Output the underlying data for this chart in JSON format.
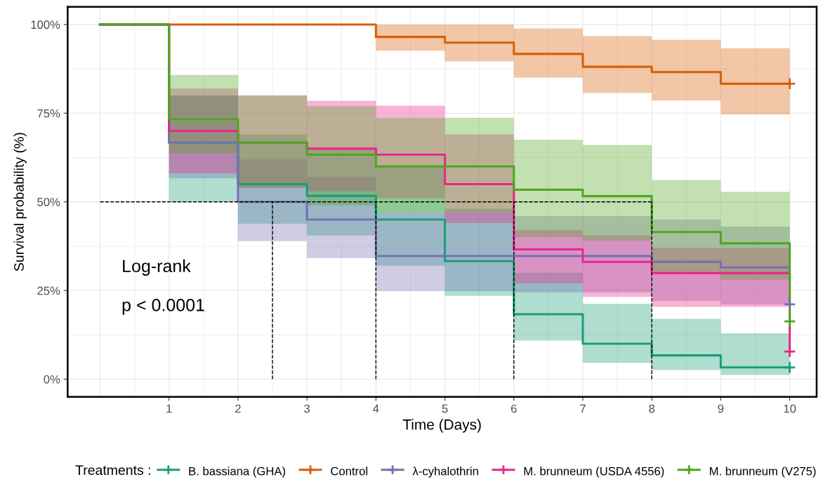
{
  "chart_data": {
    "type": "step",
    "xlabel": "Time (Days)",
    "ylabel": "Survival probability (%)",
    "legend_title": "Treatments :",
    "x": [
      0,
      1,
      2,
      3,
      4,
      5,
      6,
      7,
      8,
      9,
      10
    ],
    "xlim": [
      -0.47,
      10.39
    ],
    "xticks": [
      1,
      2,
      3,
      4,
      5,
      6,
      7,
      8,
      9,
      10
    ],
    "ylim": [
      -5,
      105
    ],
    "yticks": [
      {
        "value": 0,
        "label": "0%"
      },
      {
        "value": 25,
        "label": "25%"
      },
      {
        "value": 50,
        "label": "50%"
      },
      {
        "value": 75,
        "label": "75%"
      },
      {
        "value": 100,
        "label": "100%"
      }
    ],
    "grid": true,
    "legend": "bottom",
    "line_style": "solid",
    "series": [
      {
        "name": "B. bassiana (GHA)",
        "color": "#1b9e77",
        "values": [
          100,
          66.7,
          55,
          51.7,
          45,
          33.3,
          18.3,
          10,
          6.7,
          3.3,
          3.3
        ],
        "lower": [
          100,
          50,
          43.8,
          40.5,
          32,
          23.5,
          10.9,
          4.6,
          2.6,
          1.2,
          1.2
        ],
        "upper": [
          100,
          80,
          69,
          65,
          60,
          48,
          30,
          21.2,
          17,
          12.9,
          12.9
        ]
      },
      {
        "name": "Control",
        "color": "#d95f02",
        "values": [
          100,
          100,
          100,
          100,
          96.5,
          94.9,
          91.7,
          88.1,
          86.6,
          83.3,
          83.3
        ],
        "lower": [
          100,
          100,
          100,
          100,
          92.6,
          89.6,
          85,
          80.7,
          78.6,
          74.6,
          74.6
        ],
        "upper": [
          100,
          100,
          100,
          100,
          100,
          100,
          98.9,
          96.7,
          95.7,
          93.3,
          93.3
        ]
      },
      {
        "name": "λ-cyhalothrin",
        "color": "#7570b3",
        "values": [
          100,
          66.7,
          50,
          45,
          34.7,
          34.7,
          34.7,
          34.7,
          33.1,
          31.5,
          21.1
        ],
        "lower": [
          100,
          56.6,
          38.9,
          34.1,
          24.9,
          24.9,
          24.5,
          24.5,
          22,
          21,
          21
        ],
        "upper": [
          100,
          80,
          62,
          57,
          47,
          47,
          46,
          46,
          45,
          43,
          43
        ]
      },
      {
        "name": "M. brunneum (USDA 4556)",
        "color": "#e7298a",
        "values": [
          100,
          70,
          66.7,
          65,
          63.3,
          55,
          36.6,
          33.1,
          29.9,
          29.9,
          7.8
        ],
        "lower": [
          100,
          58,
          54,
          53,
          51,
          44,
          27,
          23.2,
          20.4,
          20.4,
          20.4
        ],
        "upper": [
          100,
          82,
          80,
          78.5,
          77.1,
          69,
          42.1,
          40.5,
          37,
          37,
          37
        ]
      },
      {
        "name": "M. brunneum (V275)",
        "color": "#4fa61e",
        "values": [
          100,
          73.3,
          66.7,
          63.3,
          60,
          60,
          53.4,
          51.6,
          41.5,
          38.3,
          16.3
        ],
        "lower": [
          100,
          63.7,
          54,
          49,
          47,
          47,
          40,
          39,
          30,
          28,
          28
        ],
        "upper": [
          100,
          85.8,
          80,
          77,
          73.7,
          73.7,
          67.5,
          66,
          56.2,
          52.8,
          52.8
        ]
      },
      {
        "type": "scatter",
        "marker": "cross",
        "color": "#1b9e77",
        "values": [
          null,
          null,
          null,
          null,
          null,
          null,
          null,
          null,
          null,
          null,
          3.3
        ]
      },
      {
        "type": "scatter",
        "marker": "cross",
        "color": "#d95f02",
        "values": [
          null,
          null,
          null,
          null,
          null,
          null,
          null,
          null,
          null,
          null,
          83.3
        ]
      },
      {
        "type": "scatter",
        "marker": "cross",
        "color": "#7570b3",
        "values": [
          null,
          null,
          null,
          null,
          null,
          null,
          null,
          null,
          null,
          null,
          21.1
        ]
      },
      {
        "type": "scatter",
        "marker": "cross",
        "color": "#e7298a",
        "values": [
          null,
          null,
          null,
          null,
          null,
          null,
          null,
          null,
          null,
          null,
          7.8
        ]
      },
      {
        "type": "scatter",
        "marker": "cross",
        "color": "#4fa61e",
        "values": [
          null,
          null,
          null,
          null,
          null,
          null,
          null,
          null,
          null,
          null,
          16.3
        ]
      }
    ],
    "ref_lines": [
      {
        "axis": "y",
        "value": 50,
        "line_style": "dashed",
        "color": "#000000"
      },
      {
        "axis": "x",
        "value": 2.5,
        "line_style": "dashed",
        "color": "#000000"
      },
      {
        "axis": "x",
        "value": 4,
        "line_style": "dashed",
        "color": "#000000"
      },
      {
        "axis": "x",
        "value": 6,
        "line_style": "dashed",
        "color": "#000000"
      },
      {
        "axis": "x",
        "value": 8,
        "line_style": "dashed",
        "color": "#000000"
      }
    ],
    "annotations": [
      "Log-rank",
      "p < 0.0001"
    ]
  }
}
